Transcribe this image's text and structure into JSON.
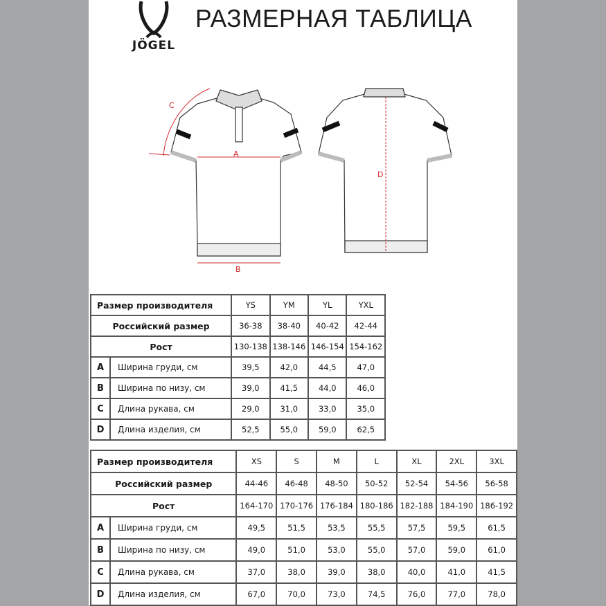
{
  "header": {
    "title": "РАЗМЕРНАЯ ТАБЛИЦА",
    "logo_text": "JÖGEL"
  },
  "diagram": {
    "labels": {
      "a": "A",
      "b": "B",
      "c": "C",
      "d": "D"
    },
    "measure_color": "#d0282e"
  },
  "tables": [
    {
      "header_label": "Размер производителя",
      "ru_label": "Российский размер",
      "height_label": "Рост",
      "sizes": [
        "YS",
        "YM",
        "YL",
        "YXL"
      ],
      "ru_sizes": [
        "36-38",
        "38-40",
        "40-42",
        "42-44"
      ],
      "heights": [
        "130-138",
        "138-146",
        "146-154",
        "154-162"
      ],
      "measures": [
        {
          "letter": "A",
          "label": "Ширина груди, см",
          "values": [
            "39,5",
            "42,0",
            "44,5",
            "47,0"
          ]
        },
        {
          "letter": "B",
          "label": "Ширина по низу, см",
          "values": [
            "39,0",
            "41,5",
            "44,0",
            "46,0"
          ]
        },
        {
          "letter": "C",
          "label": "Длина рукава, см",
          "values": [
            "29,0",
            "31,0",
            "33,0",
            "35,0"
          ]
        },
        {
          "letter": "D",
          "label": "Длина изделия, см",
          "values": [
            "52,5",
            "55,0",
            "59,0",
            "62,5"
          ]
        }
      ]
    },
    {
      "header_label": "Размер производителя",
      "ru_label": "Российский размер",
      "height_label": "Рост",
      "sizes": [
        "XS",
        "S",
        "M",
        "L",
        "XL",
        "2XL",
        "3XL"
      ],
      "ru_sizes": [
        "44-46",
        "46-48",
        "48-50",
        "50-52",
        "52-54",
        "54-56",
        "56-58"
      ],
      "heights": [
        "164-170",
        "170-176",
        "176-184",
        "180-186",
        "182-188",
        "184-190",
        "186-192"
      ],
      "measures": [
        {
          "letter": "A",
          "label": "Ширина груди, см",
          "values": [
            "49,5",
            "51,5",
            "53,5",
            "55,5",
            "57,5",
            "59,5",
            "61,5"
          ]
        },
        {
          "letter": "B",
          "label": "Ширина по низу, см",
          "values": [
            "49,0",
            "51,0",
            "53,0",
            "55,0",
            "57,0",
            "59,0",
            "61,0"
          ]
        },
        {
          "letter": "C",
          "label": "Длина рукава, см",
          "values": [
            "37,0",
            "38,0",
            "39,0",
            "38,0",
            "40,0",
            "41,0",
            "41,5"
          ]
        },
        {
          "letter": "D",
          "label": "Длина изделия, см",
          "values": [
            "67,0",
            "70,0",
            "73,0",
            "74,5",
            "76,0",
            "77,0",
            "78,0"
          ]
        }
      ]
    }
  ]
}
